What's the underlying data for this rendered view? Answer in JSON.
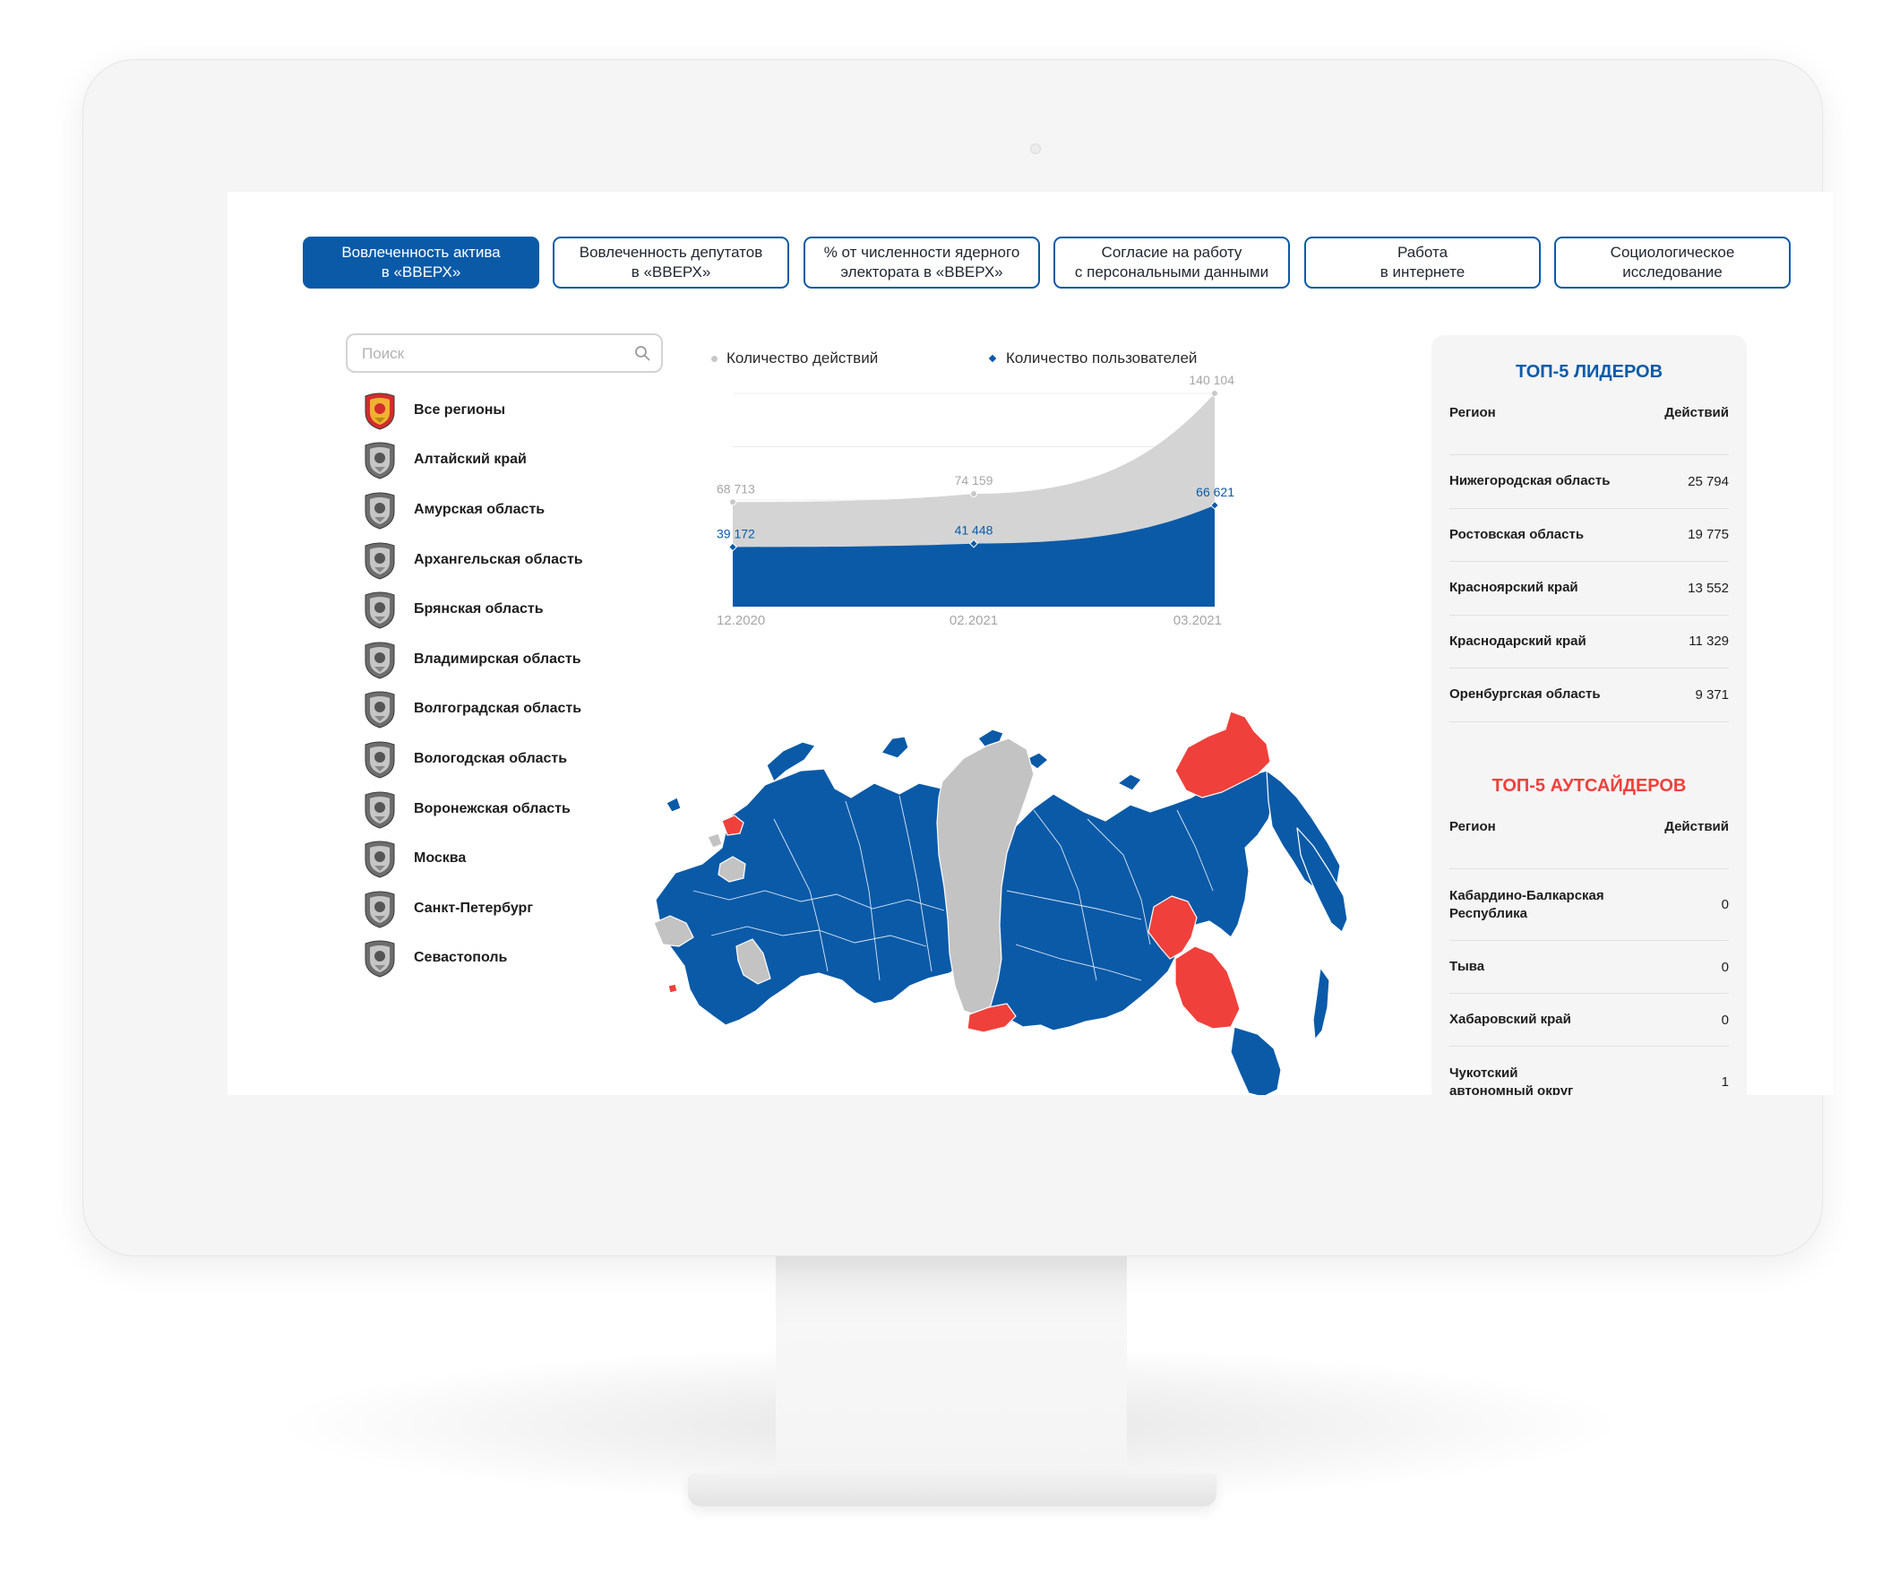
{
  "tabs": [
    {
      "label": "Вовлеченность актива\nв «ВВЕРХ»",
      "active": true
    },
    {
      "label": "Вовлеченность депутатов\nв «ВВЕРХ»",
      "active": false
    },
    {
      "label": "% от численности ядерного\nэлектората в «ВВЕРХ»",
      "active": false
    },
    {
      "label": "Согласие на работу\nс персональными данными",
      "active": false
    },
    {
      "label": "Работа\nв интернете",
      "active": false
    },
    {
      "label": "Социологическое\nисследование",
      "active": false
    }
  ],
  "search": {
    "placeholder": "Поиск",
    "icon": "search-icon"
  },
  "regions": [
    {
      "name": "Все регионы",
      "icon": "russia-coat-of-arms-icon"
    },
    {
      "name": "Алтайский край",
      "icon": "altai-krai-emblem-icon"
    },
    {
      "name": "Амурская область",
      "icon": "amur-oblast-emblem-icon"
    },
    {
      "name": "Архангельская область",
      "icon": "arkhangelsk-oblast-emblem-icon"
    },
    {
      "name": "Брянская область",
      "icon": "bryansk-oblast-emblem-icon"
    },
    {
      "name": "Владимирская область",
      "icon": "vladimir-oblast-emblem-icon"
    },
    {
      "name": "Волгоградская область",
      "icon": "volgograd-oblast-emblem-icon"
    },
    {
      "name": "Вологодская область",
      "icon": "vologda-oblast-emblem-icon"
    },
    {
      "name": "Воронежская область",
      "icon": "voronezh-oblast-emblem-icon"
    },
    {
      "name": "Москва",
      "icon": "moscow-emblem-icon"
    },
    {
      "name": "Санкт-Петербург",
      "icon": "saint-petersburg-emblem-icon"
    },
    {
      "name": "Севастополь",
      "icon": "sevastopol-emblem-icon"
    }
  ],
  "chart_data": {
    "type": "area",
    "categories": [
      "12.2020",
      "02.2021",
      "03.2021"
    ],
    "series": [
      {
        "name": "Количество действий",
        "values": [
          68713,
          74159,
          140104
        ],
        "labels": [
          "68 713",
          "74 159",
          "140 104"
        ],
        "color": "#d4d4d4",
        "marker": "circle"
      },
      {
        "name": "Количество пользователей",
        "values": [
          39172,
          41448,
          66621
        ],
        "labels": [
          "39 172",
          "41 448",
          "66 621"
        ],
        "color": "#0a5aa8",
        "marker": "diamond"
      }
    ],
    "ylim": [
      0,
      140104
    ],
    "grid": true,
    "legend": "top-left"
  },
  "map": {
    "title": "Карта регионов России",
    "colors": {
      "active": "#0a5aa8",
      "inactive": "#c3c3c3",
      "outsider": "#f0403b"
    }
  },
  "leaders": {
    "title": "ТОП-5 ЛИДЕРОВ",
    "col_region": "Регион",
    "col_actions": "Действий",
    "rows": [
      {
        "region": "Нижегородская область",
        "value": "25 794"
      },
      {
        "region": "Ростовская область",
        "value": "19 775"
      },
      {
        "region": "Красноярский край",
        "value": "13 552"
      },
      {
        "region": "Краснодарский край",
        "value": "11 329"
      },
      {
        "region": "Оренбургская область",
        "value": "9 371"
      }
    ]
  },
  "outsiders": {
    "title": "ТОП-5 АУТСАЙДЕРОВ",
    "col_region": "Регион",
    "col_actions": "Действий",
    "rows": [
      {
        "region": "Кабардино-Балкарская\nРеспублика",
        "value": "0"
      },
      {
        "region": "Тыва",
        "value": "0"
      },
      {
        "region": "Хабаровский край",
        "value": "0"
      },
      {
        "region": "Чукотский\nавтономный округ",
        "value": "1"
      }
    ]
  },
  "colors": {
    "accent": "#0a5aa8",
    "danger": "#f0403b",
    "neutral": "#d4d4d4"
  }
}
